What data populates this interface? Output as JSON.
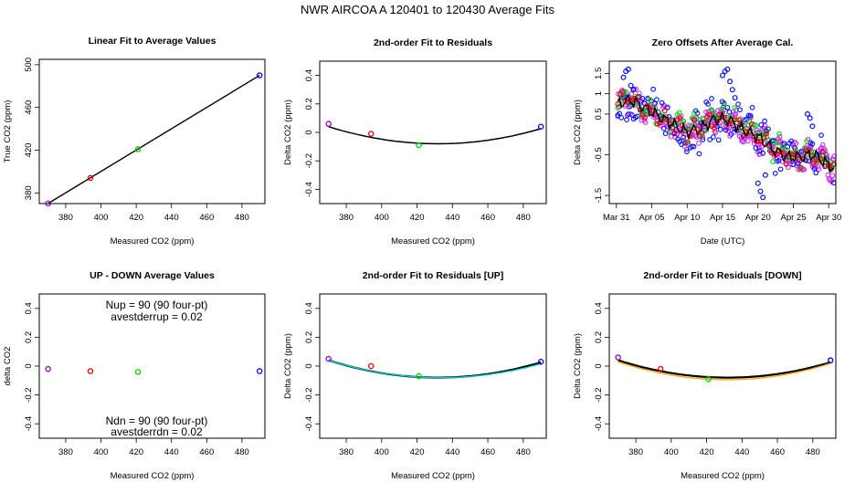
{
  "figure_title": "NWR   AIRCOA A   120401 to 120430   Average Fits",
  "colors": {
    "point_colors": [
      "#9900cc",
      "#ee0000",
      "#00cc00",
      "#0000ee"
    ],
    "fit_line": "#000000",
    "up_fit": "#00cccc",
    "down_fit": "#ffaa00",
    "ts_purple": "#cc33ee",
    "ts_blue": "#0011ee",
    "ts_green": "#00dd00",
    "ts_red": "#ee0000",
    "ts_black": "#000000"
  },
  "chart_data": [
    {
      "id": "linear",
      "type": "scatter",
      "title": "Linear Fit to Average Values",
      "xlabel": "Measured CO2 (ppm)",
      "ylabel": "True CO2 (ppm)",
      "xlim": [
        365,
        493
      ],
      "ylim": [
        370,
        505
      ],
      "xticks": [
        380,
        400,
        420,
        440,
        460,
        480
      ],
      "yticks": [
        380,
        420,
        460,
        500
      ],
      "points": [
        [
          370,
          370.1
        ],
        [
          394,
          394.0
        ],
        [
          421,
          420.9
        ],
        [
          490,
          490.0
        ]
      ],
      "fit_line": [
        [
          370,
          370.1
        ],
        [
          490,
          490.0
        ]
      ]
    },
    {
      "id": "residuals",
      "type": "scatter",
      "title": "2nd-order Fit to Residuals",
      "xlabel": "Measured CO2 (ppm)",
      "ylabel": "Delta CO2 (ppm)",
      "xlim": [
        365,
        493
      ],
      "ylim": [
        -0.5,
        0.5
      ],
      "xticks": [
        380,
        400,
        420,
        440,
        460,
        480
      ],
      "yticks": [
        -0.4,
        -0.2,
        0.0,
        0.2,
        0.4
      ],
      "points": [
        [
          370,
          0.06
        ],
        [
          394,
          -0.01
        ],
        [
          421,
          -0.09
        ],
        [
          490,
          0.04
        ]
      ],
      "fit_curve": {
        "a": 3.14e-05,
        "b": -0.02712,
        "c": 5.776
      }
    },
    {
      "id": "zero_offsets",
      "type": "scatter",
      "title": "Zero Offsets After Average Cal.",
      "xlabel": "Date (UTC)",
      "ylabel": "Delta CO2 (ppm)",
      "xlim": [
        "2012-03-30",
        "2012-05-01"
      ],
      "ylim": [
        -1.7,
        1.8
      ],
      "xticks": [
        "Mar 31",
        "Apr 05",
        "Apr 10",
        "Apr 15",
        "Apr 20",
        "Apr 25",
        "Apr 30"
      ],
      "xtick_dates": [
        "2012-03-31",
        "2012-04-05",
        "2012-04-10",
        "2012-04-15",
        "2012-04-20",
        "2012-04-25",
        "2012-04-30"
      ],
      "yticks": [
        -1.5,
        -0.5,
        0.5,
        1.0,
        1.5
      ],
      "trend_dates": [
        "2012-03-31",
        "2012-04-02",
        "2012-04-04",
        "2012-04-06",
        "2012-04-08",
        "2012-04-10",
        "2012-04-12",
        "2012-04-14",
        "2012-04-16",
        "2012-04-18",
        "2012-04-20",
        "2012-04-22",
        "2012-04-24",
        "2012-04-26",
        "2012-04-28",
        "2012-04-30",
        "2012-05-01"
      ],
      "trend_values": [
        0.75,
        0.85,
        0.65,
        0.45,
        0.25,
        0.05,
        0.15,
        0.4,
        0.35,
        0.1,
        -0.05,
        -0.35,
        -0.55,
        -0.55,
        -0.5,
        -0.75,
        -0.85
      ],
      "series": [
        {
          "color": "purple",
          "spread": 0.28,
          "offset": 0.0,
          "stride": 0.08
        },
        {
          "color": "blue",
          "spread": 0.55,
          "offset": 0.0,
          "stride": 0.25
        },
        {
          "color": "green",
          "spread": 0.25,
          "offset": 0.08,
          "stride": 0.3
        },
        {
          "color": "red",
          "spread": 0.12,
          "offset": 0.0,
          "stride": 0.35
        }
      ],
      "spikes": [
        {
          "date": "2012-04-01",
          "values": [
            1.4,
            1.55,
            1.6,
            1.2,
            1.1
          ]
        },
        {
          "date": "2012-04-15",
          "values": [
            1.45,
            1.55,
            1.6,
            1.3,
            1.1,
            0.9
          ]
        },
        {
          "date": "2012-04-20",
          "values": [
            -1.2,
            -1.4,
            -1.55,
            -1.0
          ]
        },
        {
          "date": "2012-04-27",
          "values": [
            0.5,
            0.4,
            0.2
          ]
        }
      ]
    },
    {
      "id": "updown",
      "type": "scatter",
      "title": "UP - DOWN Average Values",
      "xlabel": "Measured CO2 (ppm)",
      "ylabel": "delta CO2",
      "xlim": [
        365,
        493
      ],
      "ylim": [
        -0.5,
        0.5
      ],
      "xticks": [
        380,
        400,
        420,
        440,
        460,
        480
      ],
      "yticks": [
        -0.4,
        -0.2,
        0.0,
        0.2,
        0.4
      ],
      "points": [
        [
          370,
          -0.02
        ],
        [
          394,
          -0.035
        ],
        [
          421,
          -0.04
        ],
        [
          490,
          -0.035
        ]
      ],
      "annotations": {
        "top1": "Nup = 90 (90 four-pt)",
        "top2": "avestderrup =  0.02",
        "bottom1": "Ndn = 90 (90 four-pt)",
        "bottom2": "avestderrdn =  0.02"
      }
    },
    {
      "id": "residuals_up",
      "type": "scatter",
      "title": "2nd-order Fit to Residuals [UP]",
      "xlabel": "Measured CO2 (ppm)",
      "ylabel": "Delta CO2 (ppm)",
      "xlim": [
        365,
        493
      ],
      "ylim": [
        -0.5,
        0.5
      ],
      "xticks": [
        380,
        400,
        420,
        440,
        460,
        480
      ],
      "yticks": [
        -0.4,
        -0.2,
        0.0,
        0.2,
        0.4
      ],
      "points": [
        [
          370,
          0.05
        ],
        [
          394,
          0.0
        ],
        [
          421,
          -0.07
        ],
        [
          490,
          0.03
        ]
      ],
      "fit_curve": {
        "a": 3.14e-05,
        "b": -0.02712,
        "c": 5.776
      },
      "second_curve": {
        "a": 3e-05,
        "b": -0.026,
        "c": 5.553
      }
    },
    {
      "id": "residuals_down",
      "type": "scatter",
      "title": "2nd-order Fit to Residuals [DOWN]",
      "xlabel": "Measured CO2 (ppm)",
      "ylabel": "Delta CO2 (ppm)",
      "xlim": [
        365,
        493
      ],
      "ylim": [
        -0.5,
        0.5
      ],
      "xticks": [
        380,
        400,
        420,
        440,
        460,
        480
      ],
      "yticks": [
        -0.4,
        -0.2,
        0.0,
        0.2,
        0.4
      ],
      "points": [
        [
          370,
          0.06
        ],
        [
          394,
          -0.02
        ],
        [
          421,
          -0.09
        ],
        [
          490,
          0.04
        ]
      ],
      "fit_curve": {
        "a": 3.14e-05,
        "b": -0.02712,
        "c": 5.776
      },
      "second_curve": {
        "a": 3.28e-05,
        "b": -0.0283,
        "c": 6.01
      }
    }
  ]
}
